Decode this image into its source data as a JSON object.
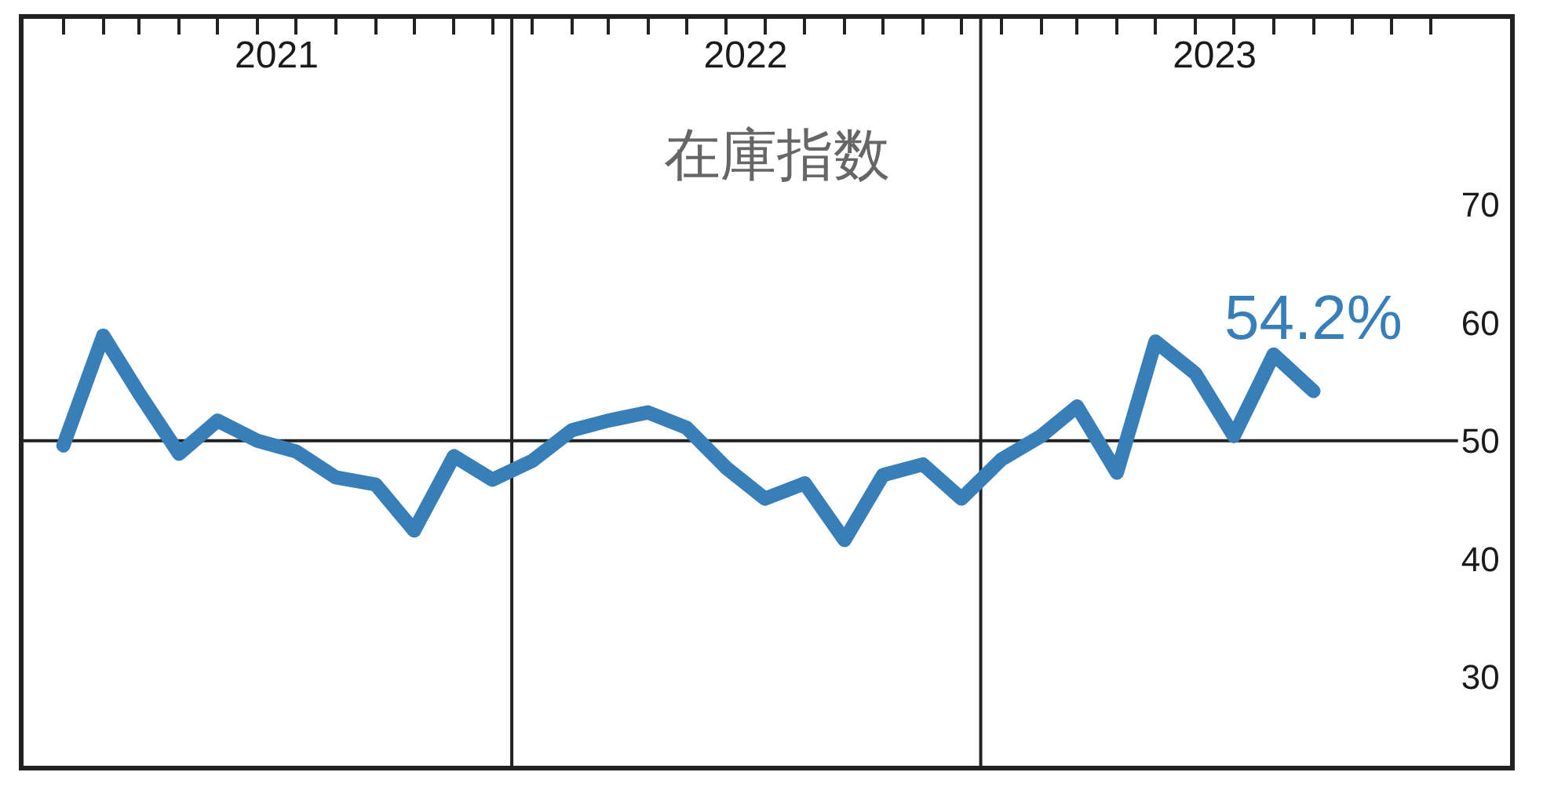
{
  "chart_data": {
    "type": "line",
    "title": "在庫指数",
    "x": [
      "2021-01",
      "2021-02",
      "2021-03",
      "2021-04",
      "2021-05",
      "2021-06",
      "2021-07",
      "2021-08",
      "2021-09",
      "2021-10",
      "2021-11",
      "2021-12",
      "2022-01",
      "2022-02",
      "2022-03",
      "2022-04",
      "2022-05",
      "2022-06",
      "2022-07",
      "2022-08",
      "2022-09",
      "2022-10",
      "2022-11",
      "2022-12",
      "2023-01",
      "2023-02",
      "2023-03",
      "2023-04",
      "2023-05",
      "2023-06",
      "2023-07",
      "2023-08",
      "2023-09"
    ],
    "series": [
      {
        "color": "#387eb9",
        "values": [
          49.6,
          58.9,
          54.0,
          48.9,
          51.7,
          50.0,
          49.1,
          46.9,
          46.3,
          42.4,
          48.7,
          46.7,
          48.3,
          50.9,
          51.7,
          52.4,
          51.1,
          47.7,
          45.1,
          46.4,
          41.6,
          47.1,
          48.0,
          45.1,
          48.4,
          50.4,
          52.9,
          47.3,
          58.4,
          55.7,
          50.4,
          57.3,
          54.2
        ]
      }
    ],
    "annotations": [
      {
        "text": "54.2%",
        "x": "2023-09",
        "y": 54.2
      }
    ],
    "xlim": [
      "2020-12-01",
      "2024-02-01"
    ],
    "xticks": [
      {
        "value": "2021-01",
        "label": null
      },
      {
        "value": "2021-02",
        "label": null
      },
      {
        "value": "2021-03",
        "label": null
      },
      {
        "value": "2021-04",
        "label": null
      },
      {
        "value": "2021-05",
        "label": null
      },
      {
        "value": "2021-06",
        "label": null
      },
      {
        "value": "2021-07",
        "label": null
      },
      {
        "value": "2021-08",
        "label": null
      },
      {
        "value": "2021-09",
        "label": null
      },
      {
        "value": "2021-10",
        "label": null
      },
      {
        "value": "2021-11",
        "label": null
      },
      {
        "value": "2021-12",
        "label": null
      },
      {
        "value": "2022-01",
        "label": null
      },
      {
        "value": "2022-02",
        "label": null
      },
      {
        "value": "2022-03",
        "label": null
      },
      {
        "value": "2022-04",
        "label": null
      },
      {
        "value": "2022-05",
        "label": null
      },
      {
        "value": "2022-06",
        "label": null
      },
      {
        "value": "2022-07",
        "label": null
      },
      {
        "value": "2022-08",
        "label": null
      },
      {
        "value": "2022-09",
        "label": null
      },
      {
        "value": "2022-10",
        "label": null
      },
      {
        "value": "2022-11",
        "label": null
      },
      {
        "value": "2022-12",
        "label": null
      },
      {
        "value": "2023-01",
        "label": null
      },
      {
        "value": "2023-02",
        "label": null
      },
      {
        "value": "2023-03",
        "label": null
      },
      {
        "value": "2023-04",
        "label": null
      },
      {
        "value": "2023-05",
        "label": null
      },
      {
        "value": "2023-06",
        "label": null
      },
      {
        "value": "2023-07",
        "label": null
      },
      {
        "value": "2023-08",
        "label": null
      },
      {
        "value": "2023-09",
        "label": null
      },
      {
        "value": "2023-10",
        "label": null
      },
      {
        "value": "2023-11",
        "label": null
      },
      {
        "value": "2023-12",
        "label": null
      },
      {
        "value": "2021-06-16",
        "label": "2021"
      },
      {
        "value": "2022-06-16",
        "label": "2022"
      },
      {
        "value": "2023-06-16",
        "label": "2023"
      }
    ],
    "ylim": [
      22.5,
      85.7
    ],
    "yticks": [
      30,
      40,
      50,
      60,
      70
    ],
    "ref_lines": [
      {
        "axis": "y",
        "value": 50,
        "color": "#222222"
      },
      {
        "axis": "x",
        "value": "2021-12-16",
        "color": "#222222"
      },
      {
        "axis": "x",
        "value": "2022-12-16",
        "color": "#222222"
      }
    ],
    "line_style": "solid"
  }
}
